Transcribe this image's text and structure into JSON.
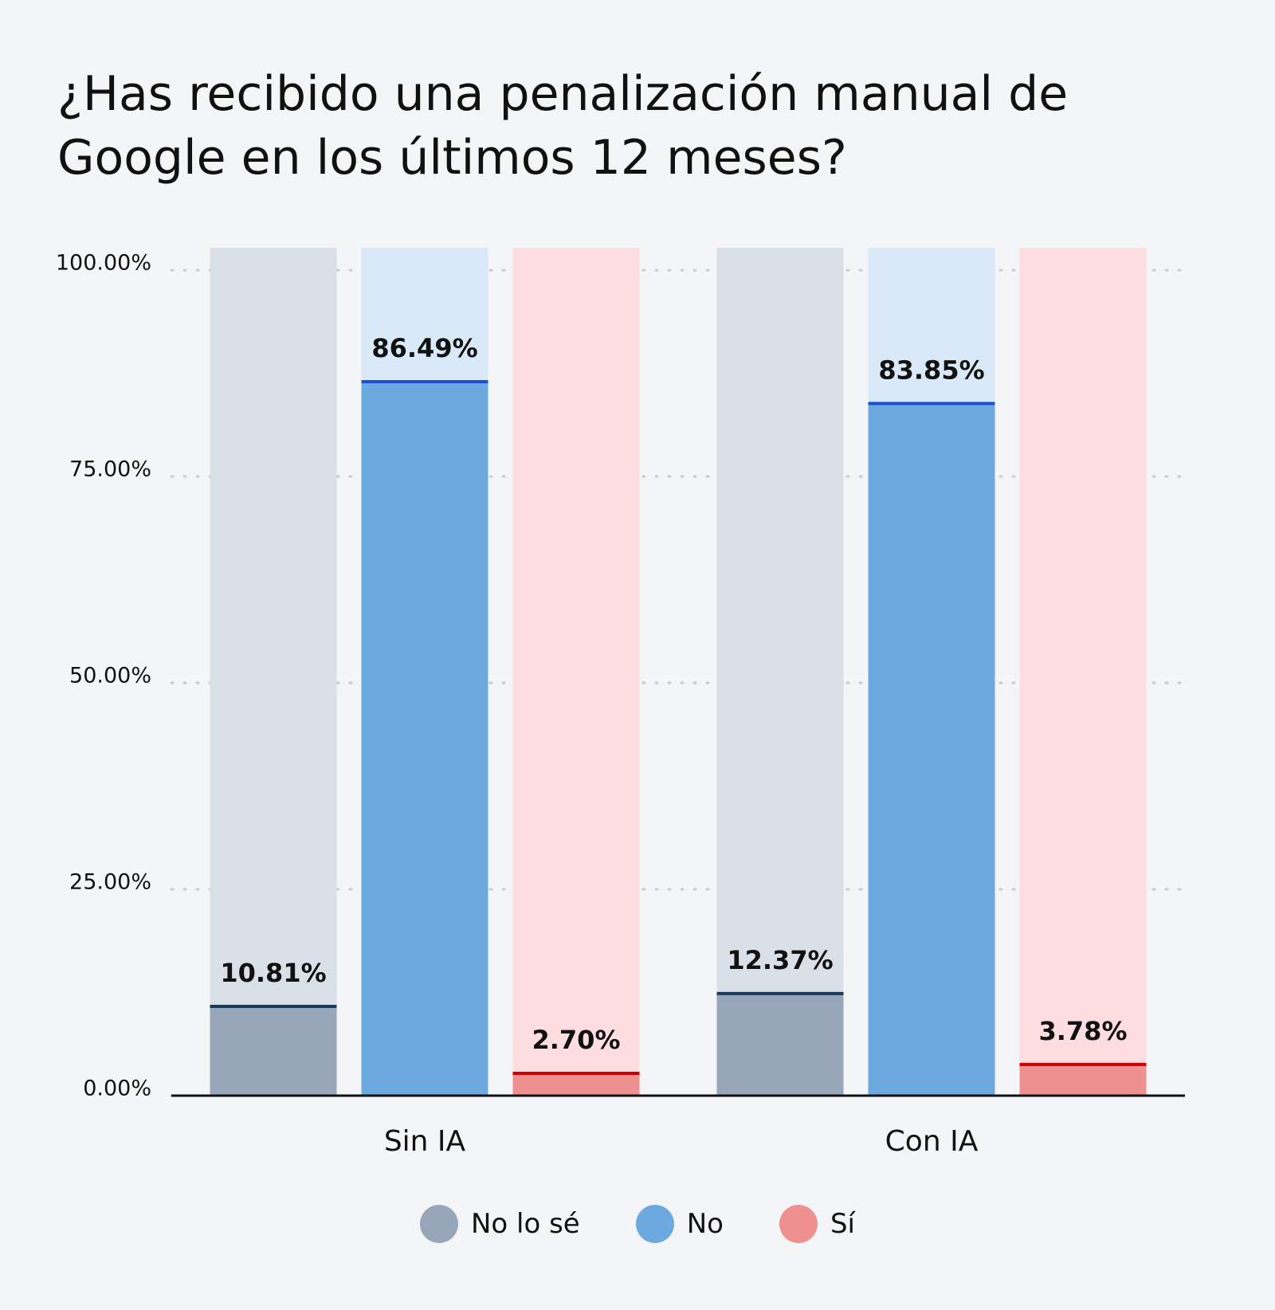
{
  "chart_data": {
    "type": "bar",
    "title": "¿Has recibido una penalización manual de Google en los últimos 12 meses?",
    "categories": [
      "Sin IA",
      "Con IA"
    ],
    "series": [
      {
        "name": "No lo sé",
        "color": "#97a6b9",
        "values": [
          10.81,
          12.37
        ],
        "value_labels": [
          "10.81%",
          "12.37%"
        ]
      },
      {
        "name": "No",
        "color": "#6ca9df",
        "values": [
          86.49,
          83.85
        ],
        "value_labels": [
          "86.49%",
          "83.85%"
        ]
      },
      {
        "name": "Sí",
        "color": "#ef9090",
        "values": [
          2.7,
          3.78
        ],
        "value_labels": [
          "2.70%",
          "3.78%"
        ]
      }
    ],
    "ylim": [
      0,
      100
    ],
    "yticks": [
      {
        "value": 0,
        "label": "0.00%"
      },
      {
        "value": 25,
        "label": "25.00%"
      },
      {
        "value": 50,
        "label": "50.00%"
      },
      {
        "value": 75,
        "label": "75.00%"
      },
      {
        "value": 100,
        "label": "100.00%"
      }
    ],
    "grid": true,
    "legend": "bottom"
  }
}
